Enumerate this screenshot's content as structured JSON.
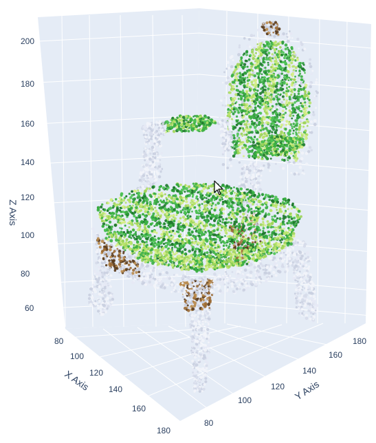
{
  "chart_data": {
    "type": "scatter3d",
    "title": "",
    "scene": {
      "background": "#e5ecf6",
      "gridColor": "#ffffff",
      "textColor": "#2a3f5f"
    },
    "axes": {
      "x": {
        "title": "X Axis",
        "ticks": [
          "80",
          "100",
          "120",
          "140",
          "160",
          "180"
        ],
        "range": [
          80,
          180
        ]
      },
      "y": {
        "title": "Y Axis",
        "ticks": [
          "80",
          "100",
          "120",
          "140",
          "160",
          "180"
        ],
        "range": [
          80,
          180
        ]
      },
      "z": {
        "title": "Z Axis",
        "ticks": [
          "60",
          "80",
          "100",
          "120",
          "140",
          "160",
          "180",
          "200"
        ],
        "range": [
          50,
          210
        ]
      }
    },
    "point_cloud": {
      "subject": "upholstered armchair with carved wooden frame",
      "colors": {
        "upholstery_green": "#3cb043",
        "upholstery_light": "#b7e36b",
        "upholstery_dark": "#1f7a2e",
        "frame_white": "#f2f4fa",
        "frame_shadow": "#c9cfe0",
        "gilt_brown": "#9b6a34",
        "gilt_dark": "#5a3b1c"
      }
    }
  },
  "cursor": {
    "icon": "arrow-cursor-icon"
  }
}
